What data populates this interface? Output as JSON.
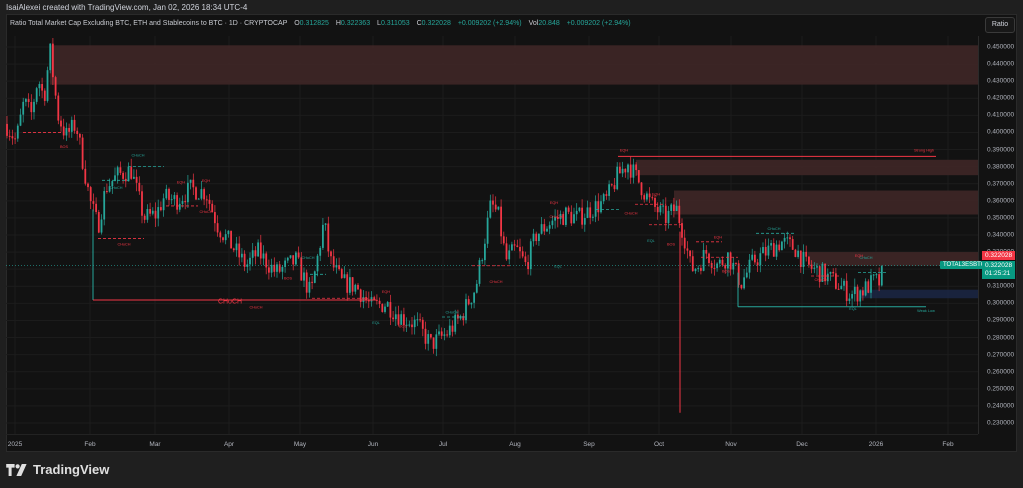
{
  "header": {
    "credit": "IsaiAlexei created with TradingView.com, Jan 02, 2026 18:34 UTC-4"
  },
  "legend": {
    "title": "Ratio Total Market Cap Excluding BTC, ETH and Stablecoins to BTC · 1D · CRYPTOCAP",
    "open_label": "O",
    "open": "0.312825",
    "high_label": "H",
    "high": "0.322363",
    "low_label": "L",
    "low": "0.311053",
    "close_label": "C",
    "close": "0.322028",
    "change": "+0.009202 (+2.94%)",
    "vol_label": "Vol",
    "vol": "20.848",
    "vol_change": "+0.009202 (+2.94%)"
  },
  "toolbar": {
    "ratio_label": "Ratio"
  },
  "price_scale": {
    "ticks": [
      "0.450000",
      "0.440000",
      "0.430000",
      "0.420000",
      "0.410000",
      "0.400000",
      "0.390000",
      "0.380000",
      "0.370000",
      "0.360000",
      "0.350000",
      "0.340000",
      "0.330000",
      "0.320000",
      "0.310000",
      "0.300000",
      "0.290000",
      "0.280000",
      "0.270000",
      "0.260000",
      "0.250000",
      "0.240000",
      "0.230000"
    ],
    "last_price_red": "0.322028",
    "symbol_tag": "TOTAL3ESBTC",
    "last_price_green": "0.322028",
    "countdown": "01:25:21"
  },
  "time_scale": {
    "ticks": [
      "2025",
      "Feb",
      "Mar",
      "Apr",
      "May",
      "Jun",
      "Jul",
      "Aug",
      "Sep",
      "Oct",
      "Nov",
      "Dec",
      "2026",
      "Feb"
    ]
  },
  "annotations": {
    "choch": "CHoCH",
    "bos": "BOS",
    "eqh": "EQH",
    "eql": "EQL",
    "strong_high": "Strong High",
    "weak_low": "Weak Low"
  },
  "branding": {
    "name": "TradingView"
  },
  "colors": {
    "up": "#26a69a",
    "down": "#f23645",
    "supply_zone": "#3d2626",
    "demand_zone": "#1a2540",
    "background": "#121212"
  },
  "chart_data": {
    "type": "candlestick",
    "title": "Ratio Total Market Cap Excluding BTC, ETH and Stablecoins to BTC · 1D · CRYPTOCAP",
    "xlabel": "",
    "ylabel": "Ratio",
    "ylim": [
      0.225,
      0.456
    ],
    "x_ticks": [
      "2025",
      "Feb",
      "Mar",
      "Apr",
      "May",
      "Jun",
      "Jul",
      "Aug",
      "Sep",
      "Oct",
      "Nov",
      "Dec",
      "2026",
      "Feb"
    ],
    "y_ticks": [
      0.45,
      0.44,
      0.43,
      0.42,
      0.41,
      0.4,
      0.39,
      0.38,
      0.37,
      0.36,
      0.35,
      0.34,
      0.33,
      0.32,
      0.31,
      0.3,
      0.29,
      0.28,
      0.27,
      0.26,
      0.25,
      0.24,
      0.23
    ],
    "approx_close_path": [
      {
        "date": "2025-01-01",
        "value": 0.405
      },
      {
        "date": "2025-01-15",
        "value": 0.418
      },
      {
        "date": "2025-01-22",
        "value": 0.432
      },
      {
        "date": "2025-02-01",
        "value": 0.398
      },
      {
        "date": "2025-02-05",
        "value": 0.355
      },
      {
        "date": "2025-02-15",
        "value": 0.365
      },
      {
        "date": "2025-03-01",
        "value": 0.362
      },
      {
        "date": "2025-03-15",
        "value": 0.367
      },
      {
        "date": "2025-04-01",
        "value": 0.33
      },
      {
        "date": "2025-04-20",
        "value": 0.318
      },
      {
        "date": "2025-05-01",
        "value": 0.335
      },
      {
        "date": "2025-05-15",
        "value": 0.305
      },
      {
        "date": "2025-06-01",
        "value": 0.295
      },
      {
        "date": "2025-06-20",
        "value": 0.272
      },
      {
        "date": "2025-07-01",
        "value": 0.285
      },
      {
        "date": "2025-07-15",
        "value": 0.345
      },
      {
        "date": "2025-08-01",
        "value": 0.315
      },
      {
        "date": "2025-08-15",
        "value": 0.345
      },
      {
        "date": "2025-09-01",
        "value": 0.355
      },
      {
        "date": "2025-09-15",
        "value": 0.378
      },
      {
        "date": "2025-10-01",
        "value": 0.35
      },
      {
        "date": "2025-10-10",
        "value": 0.31
      },
      {
        "date": "2025-10-25",
        "value": 0.32
      },
      {
        "date": "2025-11-15",
        "value": 0.332
      },
      {
        "date": "2025-12-01",
        "value": 0.312
      },
      {
        "date": "2025-12-25",
        "value": 0.303
      },
      {
        "date": "2026-01-02",
        "value": 0.322
      }
    ],
    "last": {
      "open": 0.312825,
      "high": 0.322363,
      "low": 0.311053,
      "close": 0.322028
    },
    "flash_crash_low": 0.236,
    "zones": [
      {
        "type": "supply",
        "from": 0.428,
        "to": 0.451
      },
      {
        "type": "supply",
        "from": 0.375,
        "to": 0.384
      },
      {
        "type": "supply",
        "from": 0.352,
        "to": 0.366
      },
      {
        "type": "supply",
        "from": 0.322,
        "to": 0.33
      },
      {
        "type": "demand",
        "from": 0.303,
        "to": 0.308
      }
    ],
    "levels": [
      {
        "label": "Strong High",
        "value": 0.386
      },
      {
        "label": "Weak Low",
        "value": 0.298
      },
      {
        "label": "CHoCH",
        "value": 0.302
      }
    ],
    "legend_position": "top-left",
    "grid": true
  }
}
